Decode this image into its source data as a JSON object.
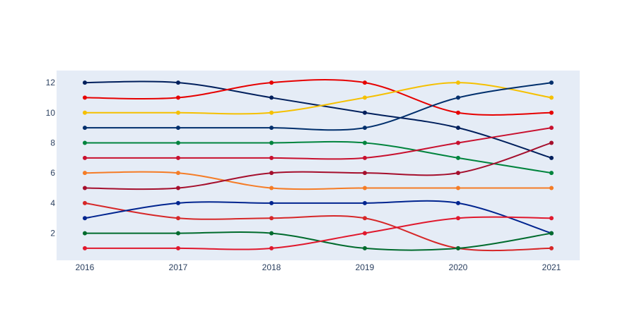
{
  "chart_data": {
    "type": "line",
    "title": "",
    "xlabel": "",
    "ylabel": "",
    "x": [
      "2016",
      "2017",
      "2018",
      "2019",
      "2020",
      "2021"
    ],
    "ylim": [
      0.2,
      12.8
    ],
    "yticks": [
      2,
      4,
      6,
      8,
      10,
      12
    ],
    "grid": false,
    "legend": "none",
    "plot_background": "#e5ecf6",
    "series": [
      {
        "color": "#001f5c",
        "values": [
          12,
          12,
          11,
          10,
          9,
          7
        ]
      },
      {
        "color": "#e60000",
        "values": [
          11,
          11,
          12,
          12,
          10,
          10
        ]
      },
      {
        "color": "#f5c000",
        "values": [
          10,
          10,
          10,
          11,
          12,
          11
        ]
      },
      {
        "color": "#002f6c",
        "values": [
          9,
          9,
          9,
          9,
          11,
          12
        ]
      },
      {
        "color": "#00843d",
        "values": [
          8,
          8,
          8,
          8,
          7,
          6
        ]
      },
      {
        "color": "#c8102e",
        "values": [
          7,
          7,
          7,
          7,
          8,
          9
        ]
      },
      {
        "color": "#f57c26",
        "values": [
          6,
          6,
          5,
          5,
          5,
          5
        ]
      },
      {
        "color": "#a50f2d",
        "values": [
          5,
          5,
          6,
          6,
          6,
          8
        ]
      },
      {
        "color": "#d62728",
        "values": [
          4,
          3,
          3,
          3,
          1,
          1
        ]
      },
      {
        "color": "#00248f",
        "values": [
          3,
          4,
          4,
          4,
          4,
          2
        ]
      },
      {
        "color": "#006b2d",
        "values": [
          2,
          2,
          2,
          1,
          1,
          2
        ]
      },
      {
        "color": "#e0182d",
        "values": [
          1,
          1,
          1,
          2,
          3,
          3
        ]
      }
    ]
  }
}
